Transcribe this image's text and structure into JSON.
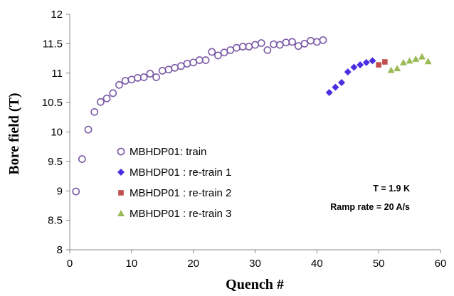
{
  "chart_data": {
    "type": "scatter",
    "xlabel": "Quench #",
    "ylabel": "Bore field (T)",
    "xlim": [
      0,
      60
    ],
    "ylim": [
      8,
      12
    ],
    "xticks": [
      0,
      10,
      20,
      30,
      40,
      50,
      60
    ],
    "yticks": [
      8,
      8.5,
      9,
      9.5,
      10,
      10.5,
      11,
      11.5,
      12
    ],
    "ytick_labels": [
      "8",
      "8.5",
      "9",
      "9.5",
      "10",
      "10.5",
      "11",
      "11.5",
      "12"
    ],
    "grid": false,
    "legend_placement": "lower-left",
    "series": [
      {
        "name": "MBHDP01: train",
        "marker": "open-circle",
        "color": "#7b5aa6",
        "points": [
          [
            1,
            8.99
          ],
          [
            2,
            9.54
          ],
          [
            3,
            10.04
          ],
          [
            4,
            10.34
          ],
          [
            5,
            10.51
          ],
          [
            6,
            10.57
          ],
          [
            7,
            10.66
          ],
          [
            8,
            10.8
          ],
          [
            9,
            10.87
          ],
          [
            10,
            10.89
          ],
          [
            11,
            10.92
          ],
          [
            12,
            10.93
          ],
          [
            13,
            10.99
          ],
          [
            14,
            10.93
          ],
          [
            15,
            11.04
          ],
          [
            16,
            11.06
          ],
          [
            17,
            11.09
          ],
          [
            18,
            11.12
          ],
          [
            19,
            11.16
          ],
          [
            20,
            11.18
          ],
          [
            21,
            11.22
          ],
          [
            22,
            11.22
          ],
          [
            23,
            11.36
          ],
          [
            24,
            11.3
          ],
          [
            25,
            11.35
          ],
          [
            26,
            11.39
          ],
          [
            27,
            11.43
          ],
          [
            28,
            11.45
          ],
          [
            29,
            11.45
          ],
          [
            30,
            11.48
          ],
          [
            31,
            11.51
          ],
          [
            32,
            11.39
          ],
          [
            33,
            11.49
          ],
          [
            34,
            11.48
          ],
          [
            35,
            11.52
          ],
          [
            36,
            11.53
          ],
          [
            37,
            11.46
          ],
          [
            38,
            11.5
          ],
          [
            39,
            11.55
          ],
          [
            40,
            11.53
          ],
          [
            41,
            11.56
          ]
        ]
      },
      {
        "name": "MBHDP01 : re-train 1",
        "marker": "diamond",
        "color": "#4a2fe0",
        "points": [
          [
            42,
            10.67
          ],
          [
            43,
            10.76
          ],
          [
            44,
            10.84
          ],
          [
            45,
            11.02
          ],
          [
            46,
            11.1
          ],
          [
            47,
            11.14
          ],
          [
            48,
            11.18
          ],
          [
            49,
            11.21
          ]
        ]
      },
      {
        "name": "MBHDP01 : re-train 2",
        "marker": "square",
        "color": "#c0504d",
        "points": [
          [
            50,
            11.14
          ],
          [
            51,
            11.19
          ]
        ]
      },
      {
        "name": "MBHDP01 : re-train 3",
        "marker": "triangle",
        "color": "#9bbb59",
        "points": [
          [
            52,
            11.05
          ],
          [
            53,
            11.08
          ],
          [
            54,
            11.18
          ],
          [
            55,
            11.21
          ],
          [
            56,
            11.24
          ],
          [
            57,
            11.28
          ],
          [
            58,
            11.2
          ]
        ]
      }
    ],
    "annotations": [
      "T = 1.9 K",
      "Ramp rate = 20 A/s"
    ]
  }
}
